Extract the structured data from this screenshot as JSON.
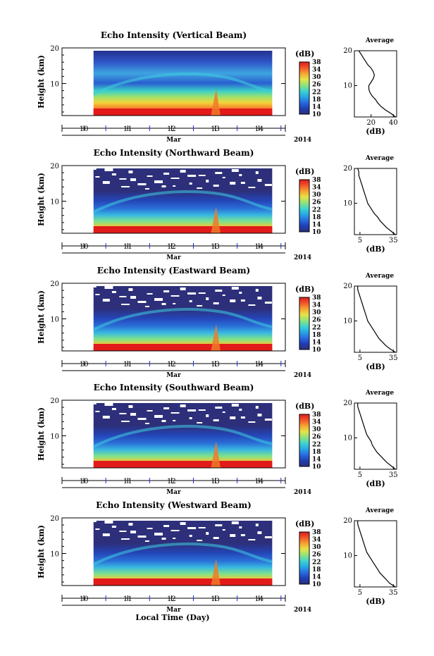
{
  "chart_data": {
    "type": "heatmap",
    "colorbar": {
      "unit": "(dB)",
      "ticks": [
        10,
        14,
        18,
        22,
        26,
        30,
        34,
        38
      ],
      "range": [
        10,
        38
      ],
      "colors": [
        "#2d2f7a",
        "#1f3fb4",
        "#2a6be0",
        "#26a8e6",
        "#3fd4d0",
        "#8fe37a",
        "#e5e34a",
        "#f6a531",
        "#f2552a",
        "#e01c1c"
      ]
    },
    "time_axis": {
      "ticks": [
        "10",
        "11",
        "12",
        "13",
        "14"
      ],
      "month_label": "Mar",
      "year_label": "2014",
      "range_day": [
        9.5,
        14.6
      ],
      "xlabel": "Local Time (Day)"
    },
    "height_axis": {
      "ticks": [
        "10",
        "20"
      ],
      "range_km": [
        1,
        20
      ],
      "ylabel": "Height (km)"
    },
    "average_xlabel": "(dB)",
    "panels": [
      {
        "title": "Echo Intensity (Vertical Beam)",
        "average_title": "Average",
        "average_xticks": [
          "20",
          "40"
        ],
        "average_xrange": [
          5,
          43
        ],
        "average_profile": {
          "height_km": [
            1,
            2,
            3,
            4,
            5,
            6,
            7,
            8,
            9,
            10,
            11,
            12,
            13,
            14,
            15,
            16,
            17,
            18,
            19,
            20
          ],
          "db": [
            42,
            38,
            33,
            29,
            26,
            24,
            21,
            19,
            18,
            18,
            20,
            22,
            23,
            22,
            20,
            17,
            15,
            13,
            11,
            9
          ]
        }
      },
      {
        "title": "Echo Intensity (Northward Beam)",
        "average_title": "Average",
        "average_xticks": [
          "5",
          "35"
        ],
        "average_xrange": [
          0,
          38
        ],
        "average_profile": {
          "height_km": [
            1,
            2,
            3,
            4,
            5,
            6,
            7,
            8,
            9,
            10,
            11,
            12,
            13,
            14,
            15,
            16,
            17,
            18,
            19,
            20
          ],
          "db": [
            37,
            33,
            29,
            26,
            23,
            21,
            18,
            16,
            14,
            12,
            11,
            10,
            9,
            8,
            7,
            6,
            5,
            4,
            4,
            3
          ]
        }
      },
      {
        "title": "Echo Intensity (Eastward Beam)",
        "average_title": "Average",
        "average_xticks": [
          "5",
          "35"
        ],
        "average_xrange": [
          0,
          38
        ],
        "average_profile": {
          "height_km": [
            1,
            2,
            3,
            4,
            5,
            6,
            7,
            8,
            9,
            10,
            11,
            12,
            13,
            14,
            15,
            16,
            17,
            18,
            19,
            20
          ],
          "db": [
            37,
            32,
            28,
            25,
            22,
            20,
            18,
            16,
            14,
            12,
            11,
            10,
            9,
            8,
            7,
            6,
            5,
            4,
            3,
            3
          ]
        }
      },
      {
        "title": "Echo Intensity (Southward Beam)",
        "average_title": "Average",
        "average_xticks": [
          "5",
          "35"
        ],
        "average_xrange": [
          0,
          38
        ],
        "average_profile": {
          "height_km": [
            1,
            2,
            3,
            4,
            5,
            6,
            7,
            8,
            9,
            10,
            11,
            12,
            13,
            14,
            15,
            16,
            17,
            18,
            19,
            20
          ],
          "db": [
            37,
            33,
            29,
            26,
            23,
            20,
            18,
            16,
            15,
            13,
            11,
            10,
            9,
            8,
            7,
            6,
            5,
            4,
            3,
            3
          ]
        }
      },
      {
        "title": "Echo Intensity (Westward Beam)",
        "average_title": "Average",
        "average_xticks": [
          "5",
          "35"
        ],
        "average_xrange": [
          0,
          38
        ],
        "average_profile": {
          "height_km": [
            1,
            2,
            3,
            4,
            5,
            6,
            7,
            8,
            9,
            10,
            11,
            12,
            13,
            14,
            15,
            16,
            17,
            18,
            19,
            20
          ],
          "db": [
            37,
            32,
            29,
            26,
            23,
            21,
            19,
            17,
            15,
            13,
            11,
            10,
            9,
            8,
            7,
            6,
            5,
            4,
            3,
            3
          ]
        }
      }
    ]
  }
}
